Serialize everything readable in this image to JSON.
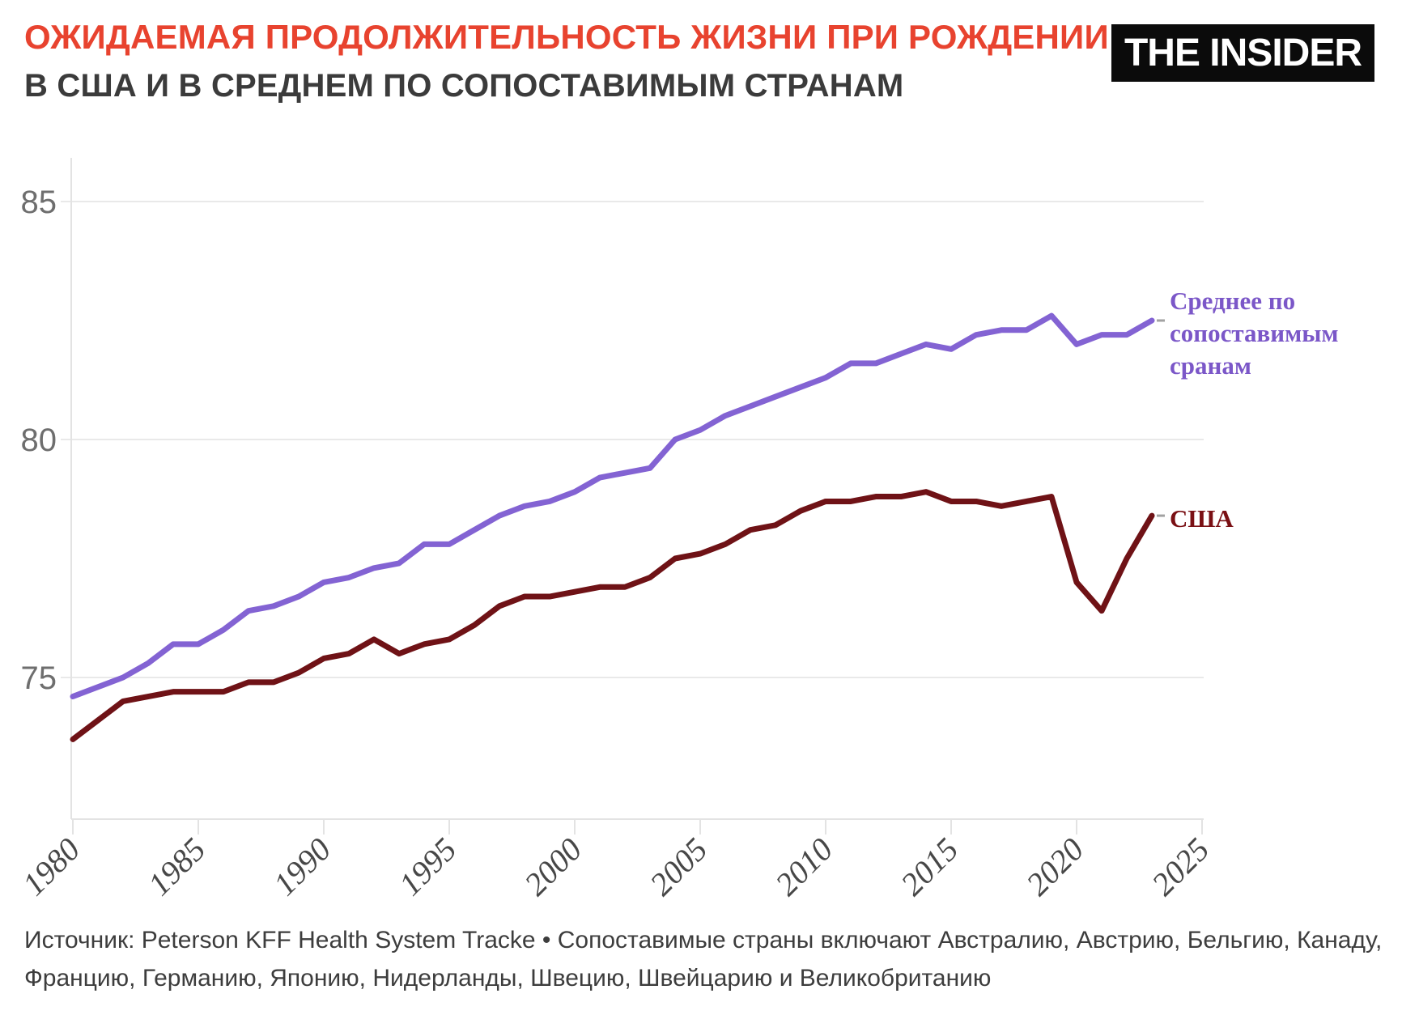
{
  "header": {
    "title": "ОЖИДАЕМАЯ ПРОДОЛЖИТЕЛЬНОСТЬ ЖИЗНИ ПРИ РОЖДЕНИИ",
    "title_color": "#e8432f",
    "subtitle": "В США И В СРЕДНЕМ ПО СОПОСТАВИМЫМ СТРАНАМ",
    "subtitle_color": "#3b3b3b",
    "logo_text": "THE INSIDER"
  },
  "chart_data": {
    "type": "line",
    "x": [
      1980,
      1981,
      1982,
      1983,
      1984,
      1985,
      1986,
      1987,
      1988,
      1989,
      1990,
      1991,
      1992,
      1993,
      1994,
      1995,
      1996,
      1997,
      1998,
      1999,
      2000,
      2001,
      2002,
      2003,
      2004,
      2005,
      2006,
      2007,
      2008,
      2009,
      2010,
      2011,
      2012,
      2013,
      2014,
      2015,
      2016,
      2017,
      2018,
      2019,
      2020,
      2021,
      2022,
      2023
    ],
    "series": [
      {
        "name": "Среднее по сопоставимым сранам",
        "label_lines": [
          "Среднее по",
          "сопоставимым",
          "сранам"
        ],
        "color": "#8363d3",
        "label_color": "#7b57c8",
        "values": [
          74.6,
          74.8,
          75.0,
          75.3,
          75.7,
          75.7,
          76.0,
          76.4,
          76.5,
          76.7,
          77.0,
          77.1,
          77.3,
          77.4,
          77.8,
          77.8,
          78.1,
          78.4,
          78.6,
          78.7,
          78.9,
          79.2,
          79.3,
          79.4,
          80.0,
          80.2,
          80.5,
          80.7,
          80.9,
          81.1,
          81.3,
          81.6,
          81.6,
          81.8,
          82.0,
          81.9,
          82.2,
          82.3,
          82.3,
          82.6,
          82.0,
          82.2,
          82.2,
          82.5
        ]
      },
      {
        "name": "США",
        "label_lines": [
          "США"
        ],
        "color": "#6f1216",
        "label_color": "#7a1014",
        "values": [
          73.7,
          74.1,
          74.5,
          74.6,
          74.7,
          74.7,
          74.7,
          74.9,
          74.9,
          75.1,
          75.4,
          75.5,
          75.8,
          75.5,
          75.7,
          75.8,
          76.1,
          76.5,
          76.7,
          76.7,
          76.8,
          76.9,
          76.9,
          77.1,
          77.5,
          77.6,
          77.8,
          78.1,
          78.2,
          78.5,
          78.7,
          78.7,
          78.8,
          78.8,
          78.9,
          78.7,
          78.7,
          78.6,
          78.7,
          78.8,
          77.0,
          76.4,
          77.5,
          78.4
        ]
      }
    ],
    "xticks": [
      1980,
      1985,
      1990,
      1995,
      2000,
      2005,
      2010,
      2015,
      2020,
      2025
    ],
    "yticks": [
      75,
      80,
      85
    ],
    "ytick_labels": [
      "75",
      "80",
      "85"
    ],
    "xlim": [
      1980,
      2025
    ],
    "ylim": [
      72.0,
      86.2
    ],
    "grid": "horizontal",
    "grid_color": "#e9e9e9",
    "axis_color": "#e3e3e3",
    "leader_dash_color": "#a2a2a2",
    "legend_position": "right-of-line-end",
    "title": "Ожидаемая продолжительность жизни при рождении в США и в среднем по сопоставимым странам"
  },
  "footer": {
    "line1": "Источник: Peterson KFF Health System Tracke • Сопоставимые страны включают Австралию, Австрию, Бельгию, Канаду,",
    "line2": "Францию, Германию, Японию, Нидерланды, Швецию, Швейцарию и Великобританию"
  }
}
